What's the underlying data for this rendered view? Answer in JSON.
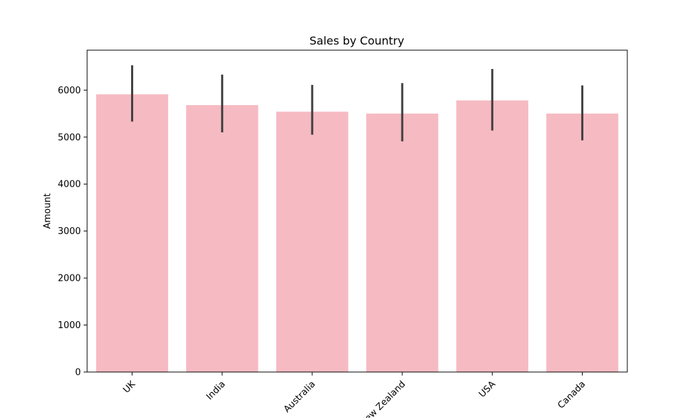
{
  "chart_data": {
    "type": "bar",
    "title": "Sales by Country",
    "xlabel": "",
    "ylabel": "Amount",
    "categories": [
      "UK",
      "India",
      "Australia",
      "New Zealand",
      "USA",
      "Canada"
    ],
    "values": [
      5910,
      5680,
      5540,
      5500,
      5780,
      5500
    ],
    "error_low": [
      5330,
      5100,
      5050,
      4910,
      5140,
      4930
    ],
    "error_high": [
      6530,
      6330,
      6110,
      6150,
      6450,
      6100
    ],
    "ylim": [
      0,
      6850
    ],
    "yticks": [
      0,
      1000,
      2000,
      3000,
      4000,
      5000,
      6000
    ],
    "grid": false,
    "bar_color": "#f6bac2",
    "error_color": "#3f3f3f"
  }
}
